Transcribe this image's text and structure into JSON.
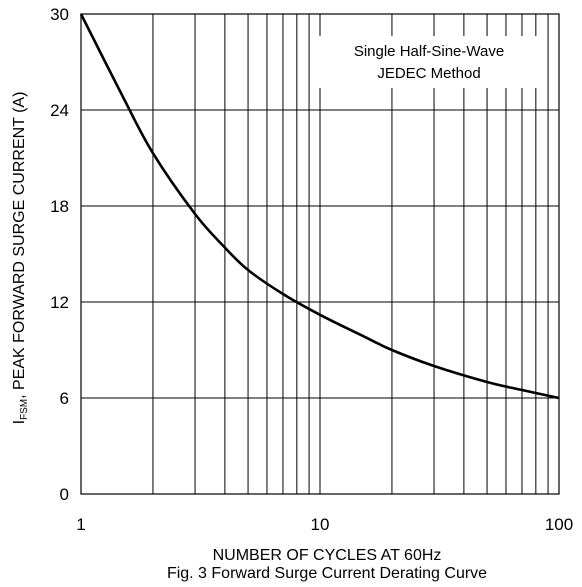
{
  "chart_data": {
    "type": "line",
    "title": "Fig. 3 Forward Surge Current Derating Curve",
    "xlabel": "NUMBER OF CYCLES AT 60Hz",
    "ylabel": {
      "main": "I",
      "subscript": "FSM",
      "rest": ", PEAK FORWARD SURGE CURRENT (A)"
    },
    "xscale": "log",
    "xlim": [
      1,
      100
    ],
    "ylim": [
      0,
      30
    ],
    "xticks": [
      "1",
      "10",
      "100"
    ],
    "yticks": [
      "0",
      "6",
      "12",
      "18",
      "24",
      "30"
    ],
    "grid": true,
    "annotation": [
      "Single Half-Sine-Wave",
      "JEDEC Method"
    ],
    "series": [
      {
        "x": [
          1,
          1.5,
          2,
          3,
          4,
          5,
          7,
          10,
          15,
          20,
          30,
          50,
          70,
          100
        ],
        "y": [
          30,
          24.8,
          21.3,
          17.5,
          15.4,
          14.0,
          12.5,
          11.2,
          9.9,
          9.0,
          8.0,
          7.0,
          6.5,
          6.0
        ]
      }
    ]
  }
}
